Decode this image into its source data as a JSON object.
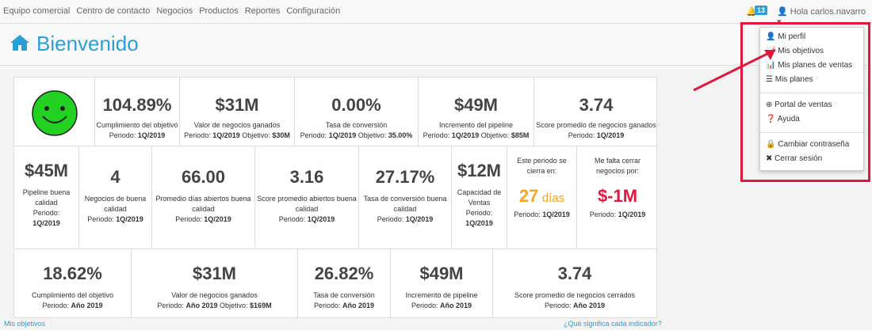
{
  "nav": {
    "items": [
      "Equipo comercial",
      "Centro de contacto",
      "Negocios",
      "Productos",
      "Reportes",
      "Configuración"
    ],
    "badge": "13",
    "user": "Hola carlos.navarro"
  },
  "page": {
    "title": "Bienvenido"
  },
  "row1": [
    {
      "value": "104.89%",
      "label": "Cumplimiento del objetivo",
      "period_label": "Periodo:",
      "period": "1Q/2019",
      "goal_label": "",
      "goal": ""
    },
    {
      "value": "$31M",
      "label": "Valor de negocios ganados",
      "period_label": "Periodo:",
      "period": "1Q/2019",
      "goal_label": "Objetivo:",
      "goal": "$30M"
    },
    {
      "value": "0.00%",
      "label": "Tasa de conversión",
      "period_label": "Periodo:",
      "period": "1Q/2019",
      "goal_label": "Objetivo:",
      "goal": "35.00%"
    },
    {
      "value": "$49M",
      "label": "Incremento del pipeline",
      "period_label": "Periodo:",
      "period": "1Q/2019",
      "goal_label": "Objetivo:",
      "goal": "$85M"
    },
    {
      "value": "3.74",
      "label": "Score promedio de negocios ganados",
      "period_label": "Periodo:",
      "period": "1Q/2019",
      "goal_label": "",
      "goal": ""
    }
  ],
  "row2": [
    {
      "value": "$45M",
      "label1": "Pipeline buena",
      "label2": "calidad",
      "label3": "Periodo:",
      "period": "1Q/2019"
    },
    {
      "value": "4",
      "label1": "Negocios de buena",
      "label2": "calidad",
      "label3": "Periodo:",
      "period": "1Q/2019"
    },
    {
      "value": "66.00",
      "label1": "Promedio días abiertos buena",
      "label2": "calidad",
      "label3": "Periodo:",
      "period": "1Q/2019"
    },
    {
      "value": "3.16",
      "label1": "Score promedio abiertos buena",
      "label2": "calidad",
      "label3": "Periodo:",
      "period": "1Q/2019"
    },
    {
      "value": "27.17%",
      "label1": "Tasa de conversión buena",
      "label2": "calidad",
      "label3": "Periodo:",
      "period": "1Q/2019"
    },
    {
      "value": "$12M",
      "label1": "Capacidad de",
      "label2": "Ventas",
      "label3": "Periodo:",
      "period": "1Q/2019"
    }
  ],
  "row2_extra": {
    "close_title1": "Este periodo se",
    "close_title2": "cierra en:",
    "close_value": "27",
    "close_unit": "días",
    "close_period_label": "Periodo:",
    "close_period": "1Q/2019",
    "missing_title1": "Me falta cerrar",
    "missing_title2": "negocios por:",
    "missing_value": "$-1M",
    "missing_period_label": "Periodo:",
    "missing_period": "1Q/2019"
  },
  "row3": [
    {
      "value": "18.62%",
      "label": "Cumplimiento del objetivo",
      "period_label": "Periodo:",
      "period": "Año 2019",
      "goal_label": "",
      "goal": ""
    },
    {
      "value": "$31M",
      "label": "Valor de negocios ganados",
      "period_label": "Periodo:",
      "period": "Año 2019",
      "goal_label": "Objetivo:",
      "goal": "$169M"
    },
    {
      "value": "26.82%",
      "label": "Tasa de conversión",
      "period_label": "Periodo:",
      "period": "Año 2019",
      "goal_label": "",
      "goal": ""
    },
    {
      "value": "$49M",
      "label": "Incremento de pipeline",
      "period_label": "Periodo:",
      "period": "Año 2019",
      "goal_label": "",
      "goal": ""
    },
    {
      "value": "3.74",
      "label": "Score promedio de negocios cerrados",
      "period_label": "Periodo:",
      "period": "Año 2019",
      "goal_label": "",
      "goal": ""
    }
  ],
  "footer": {
    "left_link": "Mis objetivos",
    "right_link": "¿Qué significa cada indicador?"
  },
  "dropdown": {
    "items": [
      "Mi perfil",
      "Mis objetivos",
      "Mis planes de ventas",
      "Mis planes",
      "Portal de ventas",
      "Ayuda",
      "Cambiar contraseña",
      "Cerrar sesión"
    ]
  },
  "colors": {
    "accent": "#2a9fd6",
    "smiley": "#22d122",
    "orange": "#f5a623",
    "red": "#e3173e"
  }
}
